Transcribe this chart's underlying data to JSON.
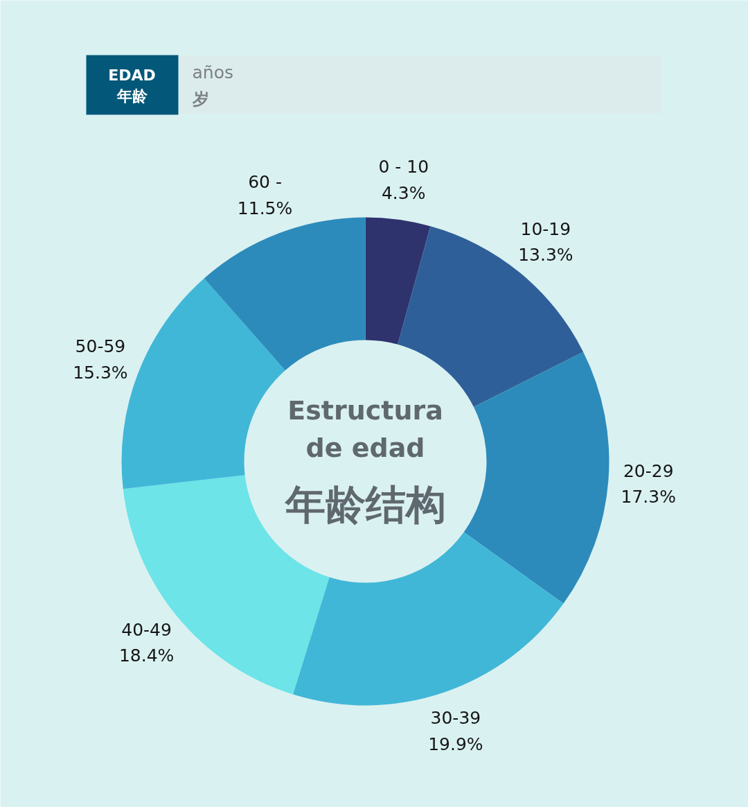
{
  "chart_data": {
    "type": "donut",
    "title": "EDAD\n年龄",
    "subtitle": "años\n岁",
    "categories": [
      "0 - 10",
      "10-19",
      "20-29",
      "30-39",
      "40-49",
      "50-59",
      "60 -"
    ],
    "values": [
      4.3,
      13.3,
      17.3,
      19.9,
      18.4,
      15.3,
      11.5
    ],
    "value_labels": [
      "4.3%",
      "13.3%",
      "17.3%",
      "19.9%",
      "18.4%",
      "15.3%",
      "11.5%"
    ],
    "colors": [
      "#2f336d",
      "#2f5f99",
      "#2c8bbb",
      "#41b7d7",
      "#6ce4e8",
      "#41b7d7",
      "#2c8bbb"
    ],
    "annotations": [
      "Estructura\nde edad",
      "年龄结构"
    ]
  }
}
